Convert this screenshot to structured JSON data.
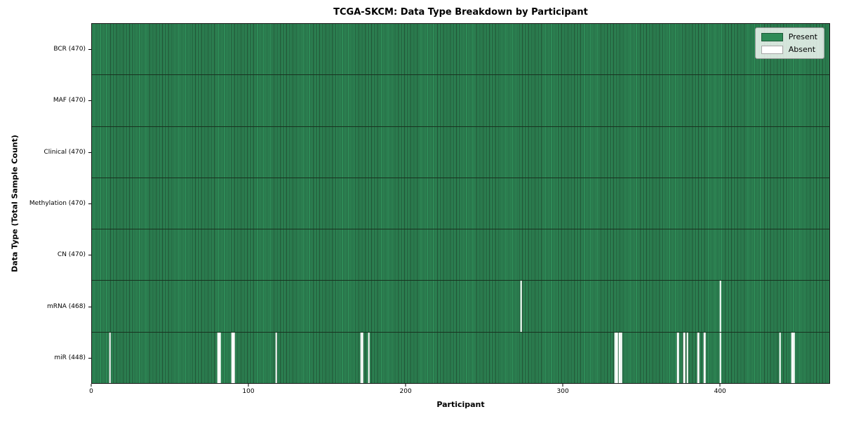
{
  "chart_data": {
    "type": "heatmap",
    "title": "TCGA-SKCM: Data Type Breakdown by Participant",
    "xlabel": "Participant",
    "ylabel": "Data Type (Total Sample Count)",
    "x_range": [
      0,
      470
    ],
    "x_ticks": [
      0,
      100,
      200,
      300,
      400
    ],
    "grid": false,
    "legend_position": "upper right",
    "legend": [
      {
        "label": "Present",
        "color": "#2e8b57"
      },
      {
        "label": "Absent",
        "color": "#ffffff"
      }
    ],
    "rows": [
      {
        "label": "BCR (470)",
        "data_type": "BCR",
        "present_count": 470,
        "absent_participants": []
      },
      {
        "label": "MAF (470)",
        "data_type": "MAF",
        "present_count": 470,
        "absent_participants": []
      },
      {
        "label": "Clinical (470)",
        "data_type": "Clinical",
        "present_count": 470,
        "absent_participants": []
      },
      {
        "label": "Methylation (470)",
        "data_type": "Methylation",
        "present_count": 470,
        "absent_participants": []
      },
      {
        "label": "CN (470)",
        "data_type": "CN",
        "present_count": 470,
        "absent_participants": []
      },
      {
        "label": "mRNA (468)",
        "data_type": "mRNA",
        "present_count": 468,
        "absent_participants": [
          273,
          400
        ]
      },
      {
        "label": "miR (448)",
        "data_type": "miR",
        "present_count": 448,
        "absent_participants": [
          11,
          80,
          81,
          89,
          90,
          117,
          171,
          172,
          176,
          333,
          334,
          336,
          337,
          373,
          377,
          379,
          386,
          390,
          400,
          438,
          446,
          447
        ]
      }
    ],
    "colors": {
      "present": "#2e8b57",
      "present_edge": "#1f4a30",
      "absent": "#ffffff",
      "plot_border": "#1a1a1a"
    }
  }
}
